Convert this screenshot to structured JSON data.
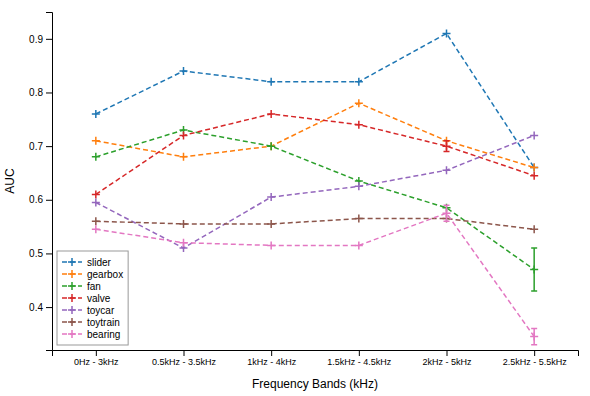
{
  "chart_data": {
    "type": "line",
    "categories": [
      "0Hz - 3kHz",
      "0.5kHz - 3.5kHz",
      "1kHz - 4kHz",
      "1.5kHz - 4.5kHz",
      "2kHz - 5kHz",
      "2.5kHz - 5.5kHz"
    ],
    "series": [
      {
        "name": "slider",
        "color": "#1f77b4",
        "values": [
          0.76,
          0.84,
          0.82,
          0.82,
          0.91,
          0.66
        ],
        "errors": [
          0,
          0,
          0,
          0,
          0,
          0
        ]
      },
      {
        "name": "gearbox",
        "color": "#ff7f0e",
        "values": [
          0.71,
          0.68,
          0.7,
          0.78,
          0.71,
          0.66
        ],
        "errors": [
          0,
          0,
          0,
          0,
          0,
          0
        ]
      },
      {
        "name": "fan",
        "color": "#2ca02c",
        "values": [
          0.68,
          0.73,
          0.7,
          0.635,
          0.585,
          0.47
        ],
        "errors": [
          0,
          0,
          0,
          0,
          0,
          0.04
        ]
      },
      {
        "name": "valve",
        "color": "#d62728",
        "values": [
          0.61,
          0.72,
          0.76,
          0.74,
          0.7,
          0.645
        ],
        "errors": [
          0,
          0,
          0,
          0,
          0.01,
          0
        ]
      },
      {
        "name": "toycar",
        "color": "#9467bd",
        "values": [
          0.595,
          0.51,
          0.605,
          0.625,
          0.655,
          0.72
        ],
        "errors": [
          0,
          0,
          0,
          0,
          0,
          0
        ]
      },
      {
        "name": "toytrain",
        "color": "#8c564b",
        "values": [
          0.56,
          0.555,
          0.555,
          0.565,
          0.565,
          0.545
        ],
        "errors": [
          0,
          0,
          0,
          0,
          0,
          0
        ]
      },
      {
        "name": "bearing",
        "color": "#e377c2",
        "values": [
          0.545,
          0.52,
          0.515,
          0.515,
          0.575,
          0.345
        ],
        "errors": [
          0,
          0,
          0,
          0,
          0.015,
          0.015
        ]
      }
    ],
    "xlabel": "Frequency Bands (kHz)",
    "ylabel": "AUC",
    "ylim": [
      0.32,
      0.95
    ],
    "yticks": [
      0.4,
      0.5,
      0.6,
      0.7,
      0.8,
      0.9
    ],
    "marker": "plus",
    "line_style": "dashed",
    "legend": "lower left",
    "grid": false
  }
}
